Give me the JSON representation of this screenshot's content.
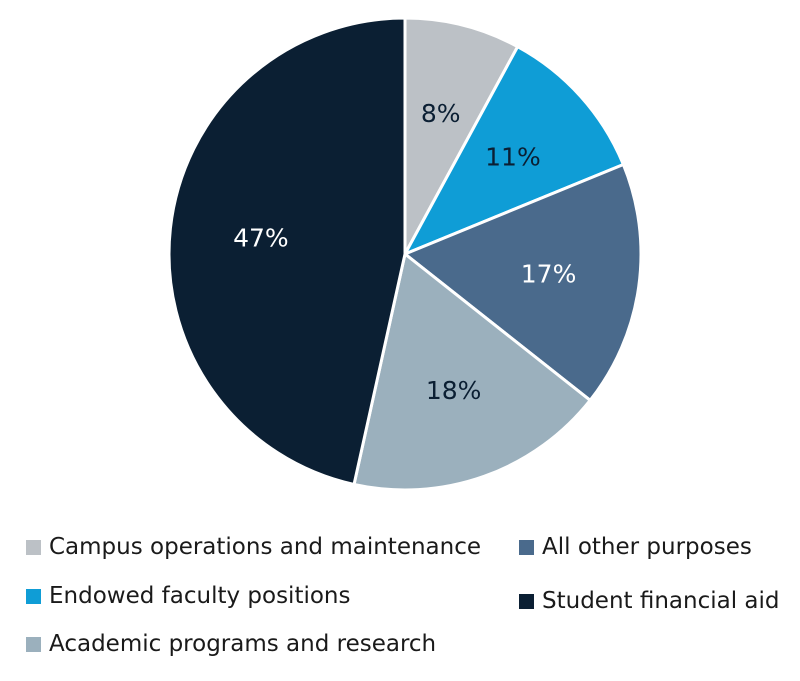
{
  "chart_data": {
    "type": "pie",
    "categories": [
      "Campus operations and maintenance",
      "Endowed faculty positions",
      "All other purposes",
      "Academic programs and research",
      "Student financial aid"
    ],
    "values": [
      8,
      11,
      17,
      18,
      47
    ],
    "value_labels": [
      "8%",
      "11%",
      "17%",
      "18%",
      "47%"
    ],
    "colors": [
      "#bcc1c6",
      "#0f9dd6",
      "#4a6a8c",
      "#9bb0bd",
      "#0b1f33"
    ],
    "label_colors": [
      "#0b1f33",
      "#0b1f33",
      "#ffffff",
      "#0b1f33",
      "#ffffff"
    ],
    "start_angle_deg": 0,
    "direction": "clockwise",
    "legend_position": "bottom"
  },
  "legend": {
    "items": [
      {
        "label": "Campus operations and maintenance",
        "color": "#bcc1c6"
      },
      {
        "label": "All other purposes",
        "color": "#4a6a8c"
      },
      {
        "label": "Endowed faculty positions",
        "color": "#0f9dd6"
      },
      {
        "label": "Student financial aid",
        "color": "#0b1f33"
      },
      {
        "label": "Academic programs and research",
        "color": "#9bb0bd"
      }
    ]
  }
}
